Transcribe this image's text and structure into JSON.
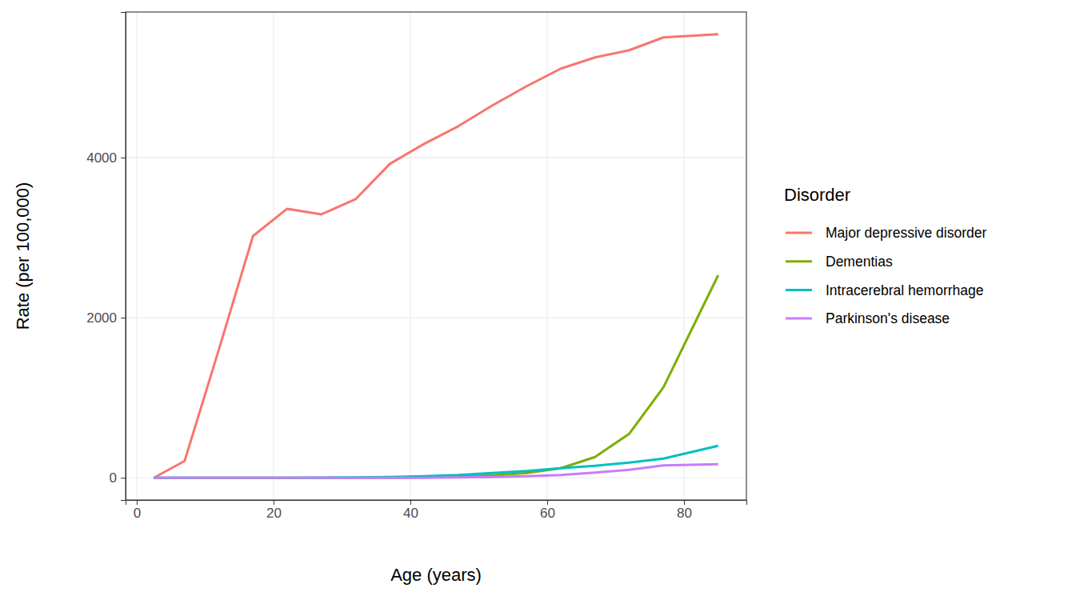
{
  "chart_data": {
    "type": "line",
    "x_label": "Age (years)",
    "y_label": "Rate (per 100,000)",
    "legend_title": "Disorder",
    "legend": "right",
    "grid": true,
    "x": [
      2.5,
      7,
      12,
      17,
      22,
      27,
      32,
      37,
      42,
      47,
      52,
      57,
      62,
      67,
      72,
      77,
      85
    ],
    "xlim": [
      -1.625,
      89.125
    ],
    "xticks": [
      0,
      20,
      40,
      60,
      80
    ],
    "ylim": [
      -277,
      5817
    ],
    "yticks": [
      0,
      2000,
      4000
    ],
    "series": [
      {
        "name": "Major depressive disorder",
        "color": "#F8766D",
        "values": [
          0,
          210,
          1600,
          3020,
          3360,
          3290,
          3480,
          3920,
          4170,
          4390,
          4650,
          4890,
          5110,
          5250,
          5340,
          5500,
          5540
        ]
      },
      {
        "name": "Dementias",
        "color": "#7CAE00",
        "values": [
          0,
          0,
          0,
          0,
          0,
          0,
          0,
          0,
          5,
          15,
          30,
          60,
          120,
          260,
          550,
          1130,
          2530
        ]
      },
      {
        "name": "Intracerebral hemorrhage",
        "color": "#00BFC4",
        "values": [
          0,
          0,
          0,
          0,
          0,
          2,
          5,
          10,
          20,
          35,
          60,
          85,
          120,
          150,
          190,
          240,
          400
        ]
      },
      {
        "name": "Parkinson's disease",
        "color": "#C77CFF",
        "values": [
          0,
          0,
          0,
          0,
          0,
          0,
          0,
          0,
          0,
          5,
          10,
          20,
          35,
          65,
          100,
          155,
          170
        ]
      }
    ]
  }
}
